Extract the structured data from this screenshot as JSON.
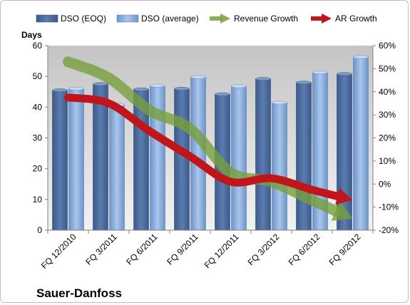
{
  "chart_data": {
    "type": "bar",
    "title": "",
    "company_label": "Sauer-Danfoss",
    "ylabel_left": "Days",
    "categories": [
      "FQ 12/2010",
      "FQ 3/2011",
      "FQ 6/2011",
      "FQ 9/2011",
      "FQ 12/2011",
      "FQ 3/2012",
      "FQ 6/2012",
      "FQ 9/2012"
    ],
    "series": [
      {
        "name": "DSO (EOQ)",
        "kind": "bar",
        "axis": "left",
        "color": "#4f6fa0",
        "values": [
          45.5,
          47.5,
          45.8,
          46,
          44.2,
          49.2,
          48,
          50.8
        ]
      },
      {
        "name": "DSO (average)",
        "kind": "bar",
        "axis": "left",
        "color": "#8eb4e3",
        "values": [
          46,
          40.8,
          47,
          49.8,
          46.8,
          41.5,
          51.3,
          56.3
        ]
      },
      {
        "name": "Revenue Growth",
        "kind": "arrow",
        "axis": "right",
        "color": "#77a03c",
        "values": [
          53,
          46,
          32,
          24,
          5,
          1,
          -7,
          -15
        ]
      },
      {
        "name": "AR Growth",
        "kind": "arrow",
        "axis": "right",
        "color": "#c0161b",
        "values": [
          37.5,
          35,
          23,
          12,
          1,
          2.5,
          -2.5,
          -7
        ]
      }
    ],
    "y_left": {
      "min": 0,
      "max": 60,
      "step": 10,
      "ticks": [
        "0",
        "10",
        "20",
        "30",
        "40",
        "50",
        "60"
      ]
    },
    "y_right": {
      "min": -20,
      "max": 60,
      "step": 10,
      "ticks": [
        "-20%",
        "-10%",
        "0%",
        "10%",
        "20%",
        "30%",
        "40%",
        "50%",
        "60%"
      ]
    },
    "legend_position": "top",
    "grid": false,
    "plot_background": "#c8c8c8"
  }
}
